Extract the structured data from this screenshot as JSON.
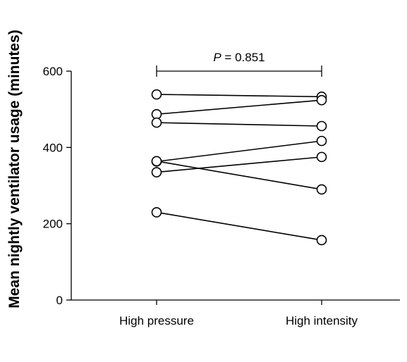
{
  "chart_data": {
    "type": "line",
    "title": "",
    "xlabel": "",
    "ylabel": "Mean nightly ventilator usage (minutes)",
    "categories": [
      "High pressure",
      "High intensity"
    ],
    "ylim": [
      0,
      600
    ],
    "yticks": [
      "0",
      "200",
      "400",
      "600"
    ],
    "grid": false,
    "legend": "none",
    "annotation": {
      "p_label": "P",
      "p_value_text": " = 0.851"
    },
    "series": [
      {
        "values": [
          539,
          533
        ]
      },
      {
        "values": [
          487,
          524
        ]
      },
      {
        "values": [
          465,
          456
        ]
      },
      {
        "values": [
          363,
          417
        ]
      },
      {
        "values": [
          335,
          375
        ]
      },
      {
        "values": [
          364,
          290
        ]
      },
      {
        "values": [
          230,
          157
        ]
      }
    ],
    "colors": {
      "line": "#000000",
      "marker_fill": "#ffffff"
    }
  }
}
